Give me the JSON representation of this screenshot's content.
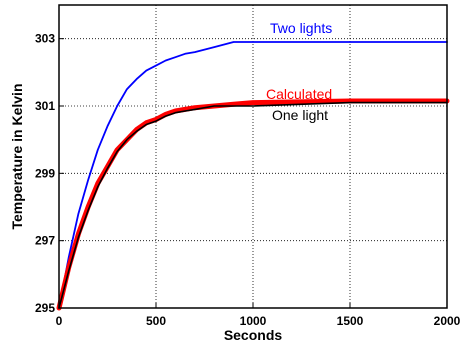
{
  "chart_data": {
    "type": "line",
    "xlabel": "Seconds",
    "ylabel": "Temperature in Kelvin",
    "xlim": [
      0,
      2000
    ],
    "ylim": [
      295,
      304
    ],
    "xticks": [
      0,
      500,
      1000,
      1500,
      2000
    ],
    "yticks": [
      295,
      297,
      299,
      301,
      303
    ],
    "grid": true,
    "series": [
      {
        "name": "Two lights",
        "color": "#0000ff",
        "x": [
          0,
          50,
          100,
          150,
          200,
          250,
          300,
          350,
          400,
          450,
          500,
          550,
          600,
          650,
          700,
          800,
          900,
          1000,
          1500,
          2000
        ],
        "y": [
          295.0,
          296.5,
          297.8,
          298.8,
          299.7,
          300.4,
          301.0,
          301.5,
          301.8,
          302.05,
          302.2,
          302.35,
          302.45,
          302.55,
          302.6,
          302.75,
          302.9,
          302.9,
          302.9,
          302.9
        ]
      },
      {
        "name": "Calculated",
        "color": "#ff0000",
        "x": [
          0,
          50,
          100,
          150,
          200,
          250,
          300,
          350,
          400,
          450,
          500,
          550,
          600,
          650,
          700,
          800,
          900,
          1000,
          1500,
          2000
        ],
        "y": [
          295.0,
          296.2,
          297.2,
          298.0,
          298.7,
          299.2,
          299.7,
          300.0,
          300.3,
          300.5,
          300.6,
          300.75,
          300.85,
          300.9,
          300.95,
          301.0,
          301.05,
          301.1,
          301.15,
          301.15
        ]
      },
      {
        "name": "One light",
        "color": "#000000",
        "x": [
          0,
          50,
          100,
          150,
          200,
          250,
          300,
          350,
          400,
          450,
          500,
          550,
          600,
          650,
          700,
          800,
          900,
          1000,
          1500,
          2000
        ],
        "y": [
          295.0,
          296.1,
          297.1,
          297.9,
          298.6,
          299.15,
          299.65,
          300.0,
          300.25,
          300.45,
          300.55,
          300.7,
          300.8,
          300.85,
          300.9,
          301.0,
          301.0,
          301.0,
          301.1,
          301.1
        ]
      }
    ]
  }
}
